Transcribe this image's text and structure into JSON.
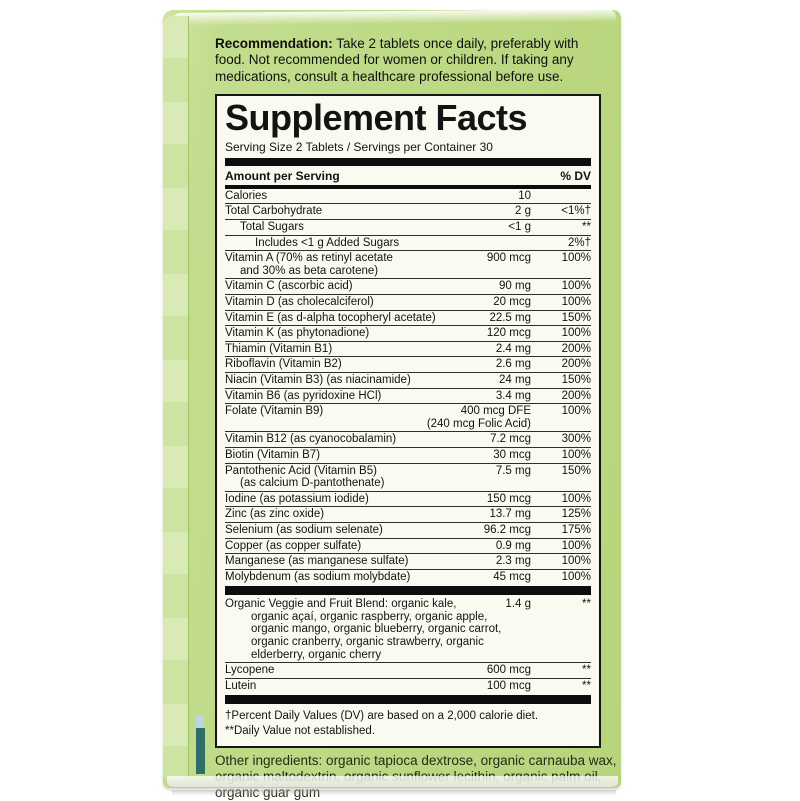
{
  "colors": {
    "box_green": "#bdd984",
    "box_green_light": "#cfe49f",
    "edge_green": "#d6e8b2",
    "edge_teal": "#2f6f68",
    "edge_blue": "#bcd5e0",
    "panel_bg": "#fbfaf1",
    "ink": "#0d0d0d",
    "other_text": "#222c16"
  },
  "package": {
    "recommendation": {
      "lead": "Recommendation:",
      "body": " Take 2 tablets once daily, preferably with food. Not recommended for women or children. If taking any medications, consult a healthcare professional before use."
    },
    "other_ingredients": "Other ingredients: organic tapioca dextrose, organic carnauba wax, organic maltodextrin, organic sunflower lecithin, organic palm oil, organic guar gum"
  },
  "panel": {
    "title": "Supplement Facts",
    "serving_line": "Serving Size 2 Tablets / Servings per Container 30",
    "header": {
      "amount_label": "Amount per Serving",
      "dv_label": "% DV"
    },
    "rows": [
      {
        "name": [
          "Calories"
        ],
        "amount": [
          "10"
        ],
        "dv": ""
      },
      {
        "name": [
          "Total Carbohydrate"
        ],
        "amount": [
          "2 g"
        ],
        "dv": "<1%†"
      },
      {
        "name": [
          "Total Sugars"
        ],
        "amount": [
          "<1 g"
        ],
        "dv": "**",
        "indent": 1
      },
      {
        "name": [
          "Includes <1 g Added Sugars"
        ],
        "amount": [],
        "dv": "2%†",
        "indent": 2
      },
      {
        "name": [
          "Vitamin A (70% as retinyl acetate",
          "and 30% as beta carotene)"
        ],
        "amount": [
          "900 mcg"
        ],
        "dv": "100%"
      },
      {
        "name": [
          "Vitamin C (ascorbic acid)"
        ],
        "amount": [
          "90 mg"
        ],
        "dv": "100%"
      },
      {
        "name": [
          "Vitamin D (as cholecalciferol)"
        ],
        "amount": [
          "20 mcg"
        ],
        "dv": "100%"
      },
      {
        "name": [
          "Vitamin E (as d-alpha tocopheryl acetate)"
        ],
        "amount": [
          "22.5 mg"
        ],
        "dv": "150%"
      },
      {
        "name": [
          "Vitamin K (as phytonadione)"
        ],
        "amount": [
          "120 mcg"
        ],
        "dv": "100%"
      },
      {
        "name": [
          "Thiamin (Vitamin B1)"
        ],
        "amount": [
          "2.4 mg"
        ],
        "dv": "200%"
      },
      {
        "name": [
          "Riboflavin (Vitamin B2)"
        ],
        "amount": [
          "2.6 mg"
        ],
        "dv": "200%"
      },
      {
        "name": [
          "Niacin (Vitamin B3) (as niacinamide)"
        ],
        "amount": [
          "24 mg"
        ],
        "dv": "150%"
      },
      {
        "name": [
          "Vitamin B6 (as pyridoxine HCl)"
        ],
        "amount": [
          "3.4 mg"
        ],
        "dv": "200%"
      },
      {
        "name": [
          "Folate (Vitamin B9)"
        ],
        "amount": [
          "400 mcg DFE",
          "(240 mcg Folic Acid)"
        ],
        "dv": "100%"
      },
      {
        "name": [
          "Vitamin B12 (as cyanocobalamin)"
        ],
        "amount": [
          "7.2 mcg"
        ],
        "dv": "300%"
      },
      {
        "name": [
          "Biotin (Vitamin B7)"
        ],
        "amount": [
          "30 mcg"
        ],
        "dv": "100%"
      },
      {
        "name": [
          "Pantothenic Acid (Vitamin B5)",
          "(as calcium D-pantothenate)"
        ],
        "amount": [
          "7.5 mg"
        ],
        "dv": "150%"
      },
      {
        "name": [
          "Iodine (as potassium iodide)"
        ],
        "amount": [
          "150 mcg"
        ],
        "dv": "100%"
      },
      {
        "name": [
          "Zinc (as zinc oxide)"
        ],
        "amount": [
          "13.7 mg"
        ],
        "dv": "125%"
      },
      {
        "name": [
          "Selenium (as sodium selenate)"
        ],
        "amount": [
          "96.2 mcg"
        ],
        "dv": "175%"
      },
      {
        "name": [
          "Copper (as copper sulfate)"
        ],
        "amount": [
          "0.9 mg"
        ],
        "dv": "100%"
      },
      {
        "name": [
          "Manganese (as manganese sulfate)"
        ],
        "amount": [
          "2.3 mg"
        ],
        "dv": "100%"
      },
      {
        "name": [
          "Molybdenum (as sodium molybdate)"
        ],
        "amount": [
          "45 mcg"
        ],
        "dv": "100%",
        "thick_after": true
      },
      {
        "name": [
          "Organic Veggie and Fruit Blend: organic kale,",
          "organic açaí, organic raspberry, organic apple,",
          "organic mango, organic blueberry, organic carrot,",
          "organic cranberry, organic strawberry, organic",
          "elderberry, organic cherry"
        ],
        "amount": [
          "1.4 g"
        ],
        "dv": "**"
      },
      {
        "name": [
          "Lycopene"
        ],
        "amount": [
          "600 mcg"
        ],
        "dv": "**"
      },
      {
        "name": [
          "Lutein"
        ],
        "amount": [
          "100 mcg"
        ],
        "dv": "**",
        "thick_after": true
      }
    ],
    "footnotes": [
      "†Percent Daily Values (DV) are based on a 2,000 calorie diet.",
      "**Daily Value not established."
    ]
  }
}
